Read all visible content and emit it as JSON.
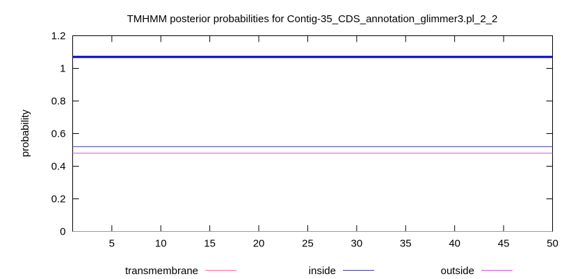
{
  "chart_data": {
    "type": "line",
    "title": "TMHMM posterior probabilities for Contig-35_CDS_annotation_glimmer3.pl_2_2",
    "xlabel": "",
    "ylabel": "probability",
    "xlim": [
      1,
      50
    ],
    "ylim": [
      0,
      1.2
    ],
    "xticks": [
      5,
      10,
      15,
      20,
      25,
      30,
      35,
      40,
      45,
      50
    ],
    "yticks": [
      0,
      0.2,
      0.4,
      0.6,
      0.8,
      1,
      1.2
    ],
    "ytick_labels": [
      "0",
      "0.2",
      "0.4",
      "0.6",
      "0.8",
      "1",
      "1.2"
    ],
    "legend_position": "bottom",
    "series": [
      {
        "name": "transmembrane",
        "color": "#ff6699",
        "x": [
          1,
          50
        ],
        "values": [
          0,
          0
        ]
      },
      {
        "name": "inside",
        "color": "#3a3a99",
        "x": [
          1,
          50
        ],
        "values": [
          0.52,
          0.52
        ]
      },
      {
        "name": "outside",
        "color": "#d94fd9",
        "x": [
          1,
          50
        ],
        "values": [
          0.48,
          0.48
        ]
      }
    ],
    "bar": {
      "color": "#0000cc",
      "value": 1.07
    }
  }
}
